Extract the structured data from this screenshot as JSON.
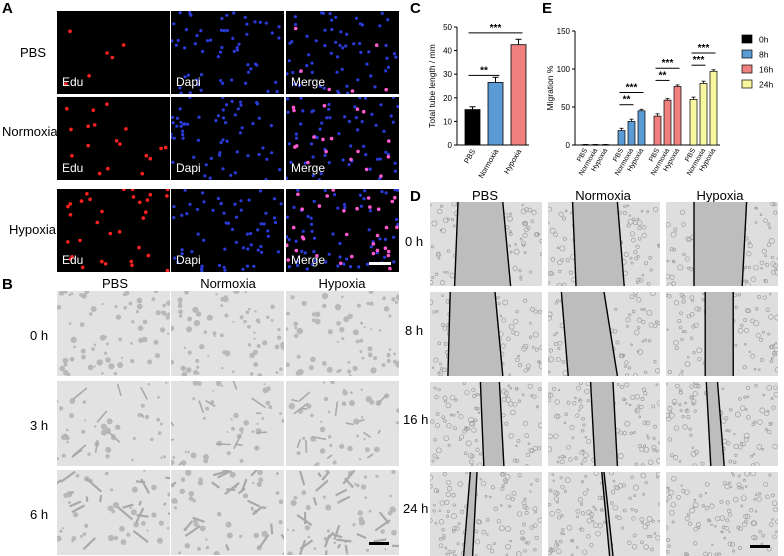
{
  "panels": {
    "A": {
      "letter": "A",
      "rows": [
        "PBS",
        "Normoxia",
        "Hypoxia"
      ],
      "channels": [
        "Edu",
        "Dapi",
        "Merge"
      ],
      "edu_density": [
        0.15,
        0.45,
        0.8
      ]
    },
    "B": {
      "letter": "B",
      "columns": [
        "PBS",
        "Normoxia",
        "Hypoxia"
      ],
      "rows": [
        "0 h",
        "3 h",
        "6 h"
      ]
    },
    "C": {
      "letter": "C"
    },
    "D": {
      "letter": "D",
      "columns": [
        "PBS",
        "Normoxia",
        "Hypoxia"
      ],
      "rows": [
        "0 h",
        "8 h",
        "16 h",
        "24 h"
      ]
    },
    "E": {
      "letter": "E"
    }
  },
  "chart_data": [
    {
      "panel": "C",
      "type": "bar",
      "categories": [
        "PBS",
        "Normoxia",
        "Hypoxia"
      ],
      "values": [
        15,
        26.5,
        42.5
      ],
      "errors": [
        1.2,
        2.2,
        2.3
      ],
      "colors": [
        "#000000",
        "#5b9bd5",
        "#f08080"
      ],
      "ylabel": "Total tube length / mm",
      "ylim": [
        0,
        50
      ],
      "yticks": [
        "0",
        "10",
        "20",
        "30",
        "40",
        "50"
      ],
      "significance": [
        {
          "from": 0,
          "to": 1,
          "label": "**"
        },
        {
          "from": 0,
          "to": 2,
          "label": "***"
        }
      ]
    },
    {
      "panel": "E",
      "type": "bar",
      "groups": [
        "0h",
        "8h",
        "16h",
        "24h"
      ],
      "categories": [
        "PBS",
        "Normoxia",
        "Hypoxia"
      ],
      "series": [
        {
          "name": "0h",
          "color": "#000000",
          "values": [
            0.5,
            0.5,
            0.5
          ],
          "errors": [
            0.3,
            0.3,
            0.3
          ]
        },
        {
          "name": "8h",
          "color": "#5b9bd5",
          "values": [
            19,
            31,
            45
          ],
          "errors": [
            3,
            3,
            2
          ]
        },
        {
          "name": "16h",
          "color": "#f08080",
          "values": [
            38,
            59,
            77
          ],
          "errors": [
            3,
            2,
            2
          ]
        },
        {
          "name": "24h",
          "color": "#f7f7a0",
          "values": [
            60,
            81,
            97
          ],
          "errors": [
            3,
            3,
            2
          ]
        }
      ],
      "ylabel": "Migration %",
      "ylim": [
        0,
        150
      ],
      "yticks": [
        "0",
        "50",
        "100",
        "150"
      ],
      "significance": [
        {
          "group": 1,
          "from": 0,
          "to": 1,
          "label": "**"
        },
        {
          "group": 1,
          "from": 0,
          "to": 2,
          "label": "***"
        },
        {
          "group": 2,
          "from": 0,
          "to": 1,
          "label": "**"
        },
        {
          "group": 2,
          "from": 0,
          "to": 2,
          "label": "***"
        },
        {
          "group": 3,
          "from": 0,
          "to": 1,
          "label": "***"
        },
        {
          "group": 3,
          "from": 0,
          "to": 2,
          "label": "***"
        }
      ],
      "legend": [
        "0h",
        "8h",
        "16h",
        "24h"
      ]
    }
  ]
}
